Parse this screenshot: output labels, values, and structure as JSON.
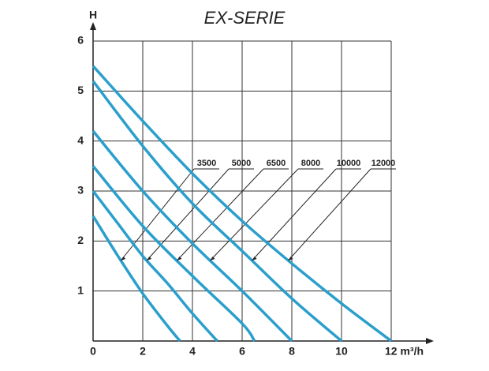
{
  "chart_data": {
    "type": "line",
    "title": "EX-SERIE",
    "y_label": "H",
    "xlim": [
      0,
      12
    ],
    "ylim": [
      0,
      6
    ],
    "xticks": [
      0,
      2,
      4,
      6,
      8,
      10,
      {
        "value": 12,
        "label": "12 m³/h"
      }
    ],
    "yticks": [
      1,
      2,
      3,
      4,
      5,
      6
    ],
    "grid": true,
    "color": "#2b9fcc",
    "series": [
      {
        "name": "3500",
        "x": [
          0,
          1,
          2,
          3,
          3.5
        ],
        "values": [
          2.5,
          1.7,
          0.95,
          0.3,
          0
        ]
      },
      {
        "name": "5000",
        "x": [
          0,
          1,
          2,
          3,
          4,
          5
        ],
        "values": [
          3.0,
          2.35,
          1.7,
          1.15,
          0.55,
          0
        ]
      },
      {
        "name": "6500",
        "x": [
          0,
          2,
          4,
          6,
          6.5
        ],
        "values": [
          3.5,
          2.3,
          1.3,
          0.35,
          0
        ]
      },
      {
        "name": "8000",
        "x": [
          0,
          2,
          4,
          6,
          8
        ],
        "values": [
          4.2,
          3.0,
          1.95,
          1.0,
          0
        ]
      },
      {
        "name": "10000",
        "x": [
          0,
          2,
          4,
          6,
          8,
          10
        ],
        "values": [
          5.2,
          3.9,
          2.75,
          1.8,
          0.85,
          0
        ]
      },
      {
        "name": "12000",
        "x": [
          0,
          2,
          4,
          6,
          8,
          10,
          12
        ],
        "values": [
          5.5,
          4.4,
          3.35,
          2.4,
          1.55,
          0.75,
          0
        ]
      }
    ]
  }
}
